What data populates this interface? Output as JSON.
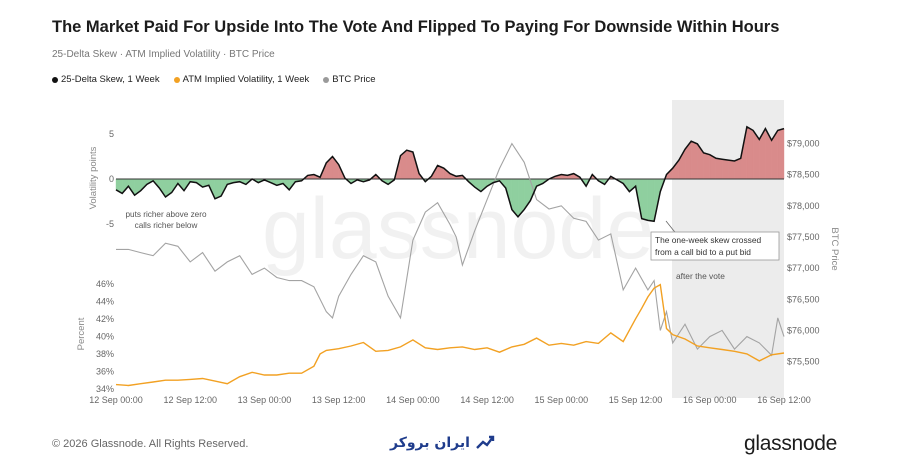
{
  "header": {
    "title": "The Market Paid For Upside Into The Vote And Flipped To Paying For Downside Within Hours",
    "subtitle": "25-Delta Skew · ATM Implied Volatility · BTC Price"
  },
  "legend": [
    {
      "label": "25-Delta Skew, 1 Week",
      "color": "#111111"
    },
    {
      "label": "ATM Implied Volatility, 1 Week",
      "color": "#f2a123"
    },
    {
      "label": "BTC Price",
      "color": "#9a9a9a"
    }
  ],
  "annotations": {
    "skew_note_1": "puts richer above zero",
    "skew_note_2": "calls richer below",
    "crossover_line1": "The one-week skew crossed",
    "crossover_line2": "from a call bid to a put bid",
    "after_vote": "after the vote"
  },
  "footer": {
    "copyright": "© 2026 Glassnode. All Rights Reserved.",
    "logo": "glassnode",
    "watermark": "glassnode",
    "broker": "ایران بروکر"
  },
  "colors": {
    "skew_line": "#111111",
    "positive_fill": "#d98b8b",
    "negative_fill": "#8fcf9f",
    "iv_line": "#f2a123",
    "btc_line": "#a3a3a3",
    "post_vote_shade": "#ececec"
  },
  "chart_data": {
    "type": "line",
    "x_ticks": [
      "12 Sep 00:00",
      "12 Sep 12:00",
      "13 Sep 00:00",
      "13 Sep 12:00",
      "14 Sep 00:00",
      "14 Sep 12:00",
      "15 Sep 00:00",
      "15 Sep 12:00",
      "16 Sep 00:00",
      "16 Sep 12:00"
    ],
    "x_range_hours": [
      0,
      108
    ],
    "vote_hour": 87,
    "skew": {
      "ylabel": "Volatility points",
      "ylim": [
        -5,
        5
      ],
      "y_ticks": [
        5,
        0,
        -5
      ],
      "hours": [
        0,
        1,
        2,
        3,
        4,
        5,
        6,
        7,
        8,
        9,
        10,
        11,
        12,
        13,
        14,
        15,
        16,
        17,
        18,
        19,
        20,
        21,
        22,
        23,
        24,
        25,
        26,
        27,
        28,
        29,
        30,
        31,
        32,
        33,
        34,
        35,
        36,
        37,
        38,
        39,
        40,
        41,
        42,
        43,
        44,
        45,
        46,
        47,
        48,
        49,
        50,
        51,
        52,
        53,
        54,
        55,
        56,
        57,
        58,
        59,
        60,
        61,
        62,
        63,
        64,
        65,
        66,
        67,
        68,
        69,
        70,
        71,
        72,
        73,
        74,
        75,
        76,
        77,
        78,
        79,
        80,
        81,
        82,
        83,
        84,
        85,
        86,
        87,
        88,
        89,
        90,
        91,
        92,
        93,
        94,
        95,
        96,
        97,
        98,
        99,
        100,
        101,
        102,
        103,
        104,
        105,
        106,
        107,
        108
      ],
      "values": [
        -1.2,
        -1.6,
        -0.8,
        -1.8,
        -1.3,
        -0.6,
        -0.2,
        -1.0,
        -2.0,
        -1.5,
        -0.5,
        -1.3,
        -0.3,
        -0.4,
        -0.9,
        -0.7,
        -2.2,
        -1.9,
        -0.6,
        -0.4,
        -0.3,
        -0.6,
        0.0,
        -0.4,
        -0.1,
        -0.4,
        -0.7,
        -0.5,
        -1.2,
        -0.3,
        -0.2,
        0.4,
        0.5,
        0.2,
        1.8,
        2.5,
        1.6,
        0.1,
        -0.5,
        -0.1,
        -0.3,
        -0.1,
        0.5,
        -0.2,
        -0.6,
        -0.1,
        2.6,
        3.2,
        3.0,
        0.6,
        -0.3,
        0.3,
        1.5,
        1.2,
        0.6,
        0.3,
        0.4,
        -0.3,
        -0.9,
        -1.4,
        -0.8,
        -0.4,
        -0.2,
        -1.0,
        -3.4,
        -4.2,
        -3.4,
        -2.4,
        -0.8,
        -0.5,
        0.0,
        0.3,
        0.5,
        0.4,
        0.6,
        0.2,
        -0.8,
        0.5,
        -0.2,
        -0.6,
        0.3,
        -0.1,
        -0.5,
        -1.4,
        -0.8,
        -4.4,
        -4.6,
        -4.7,
        -1.4,
        0.5,
        1.2,
        2.1,
        3.3,
        4.2,
        3.9,
        2.9,
        2.7,
        2.3,
        2.2,
        2.1,
        2.0,
        2.3,
        5.8,
        5.4,
        4.4,
        5.6,
        4.3,
        5.4,
        5.6
      ]
    },
    "iv": {
      "ylabel": "Percent",
      "ylim": [
        34,
        47
      ],
      "y_ticks": [
        "46%",
        "44%",
        "42%",
        "40%",
        "38%",
        "36%",
        "34%"
      ],
      "hours": [
        0,
        2,
        4,
        6,
        8,
        10,
        12,
        14,
        16,
        18,
        20,
        22,
        24,
        26,
        28,
        30,
        32,
        33,
        34,
        36,
        38,
        40,
        42,
        44,
        46,
        48,
        50,
        52,
        54,
        56,
        58,
        60,
        62,
        64,
        66,
        68,
        70,
        72,
        74,
        76,
        78,
        80,
        82,
        84,
        85,
        86,
        87,
        88,
        89,
        90,
        92,
        94,
        96,
        98,
        100,
        102,
        104,
        106,
        108
      ],
      "values": [
        34.5,
        34.4,
        34.6,
        34.8,
        35.0,
        35.0,
        35.1,
        35.2,
        34.9,
        34.6,
        35.4,
        35.9,
        35.6,
        35.6,
        35.8,
        35.8,
        36.6,
        38.0,
        38.4,
        38.6,
        38.9,
        39.3,
        38.3,
        38.4,
        38.8,
        39.6,
        38.7,
        38.5,
        38.7,
        38.8,
        38.5,
        38.7,
        38.2,
        38.8,
        39.1,
        39.8,
        39.0,
        39.2,
        39.0,
        39.4,
        39.2,
        40.4,
        39.4,
        42.0,
        43.2,
        44.5,
        45.5,
        45.9,
        40.9,
        40.2,
        39.7,
        38.9,
        38.7,
        38.5,
        38.3,
        38.0,
        37.2,
        37.9,
        38.1
      ]
    },
    "btc": {
      "ylabel": "BTC Price",
      "ylim": [
        75300,
        79250
      ],
      "y_ticks": [
        "$79,000",
        "$78,500",
        "$78,000",
        "$77,500",
        "$77,000",
        "$76,500",
        "$76,000",
        "$75,500"
      ],
      "hours": [
        0,
        2,
        4,
        6,
        8,
        10,
        12,
        14,
        16,
        18,
        20,
        22,
        24,
        26,
        28,
        30,
        32,
        34,
        35,
        36,
        38,
        40,
        42,
        44,
        46,
        48,
        50,
        52,
        54,
        55,
        56,
        58,
        60,
        62,
        64,
        66,
        68,
        70,
        72,
        74,
        76,
        78,
        80,
        82,
        84,
        86,
        87,
        88,
        89,
        90,
        92,
        94,
        96,
        98,
        100,
        102,
        104,
        106,
        107,
        108
      ],
      "values": [
        77.3,
        77.3,
        77.25,
        77.2,
        77.4,
        77.35,
        77.1,
        77.25,
        76.95,
        77.1,
        77.2,
        76.9,
        77.0,
        76.85,
        76.8,
        76.8,
        76.7,
        76.3,
        76.2,
        76.55,
        76.9,
        77.2,
        77.1,
        76.55,
        76.2,
        77.45,
        77.9,
        78.05,
        77.7,
        77.5,
        77.05,
        77.6,
        78.1,
        78.6,
        79.0,
        78.7,
        78.1,
        77.95,
        78.0,
        77.8,
        77.75,
        77.45,
        77.55,
        76.65,
        77.0,
        76.65,
        76.8,
        76.0,
        76.3,
        75.8,
        76.1,
        75.7,
        75.9,
        76.0,
        75.7,
        75.9,
        75.8,
        75.6,
        76.2,
        75.9
      ]
    }
  }
}
